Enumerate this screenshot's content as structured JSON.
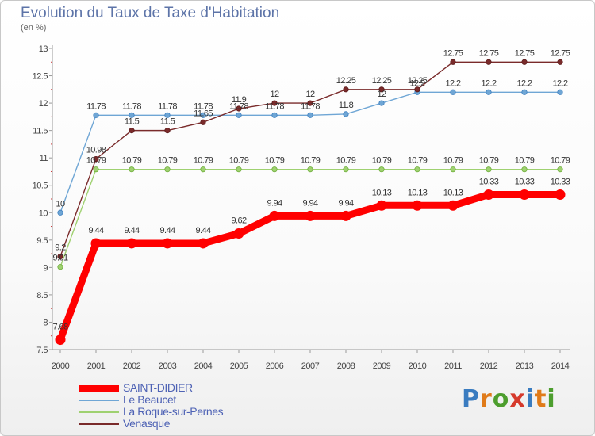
{
  "title": "Evolution du Taux de Taxe d'Habitation",
  "unit": "(en %)",
  "brand": {
    "text": "Proxiti",
    "colors": [
      "#3a7cc0",
      "#e07b1a",
      "#4d9e2e",
      "#d63a2c",
      "#3a7cc0",
      "#e07b1a",
      "#4d9e2e"
    ]
  },
  "chart_data": {
    "type": "line",
    "x": [
      "2000",
      "2001",
      "2002",
      "2003",
      "2004",
      "2005",
      "2006",
      "2007",
      "2008",
      "2009",
      "2010",
      "2011",
      "2012",
      "2013",
      "2014"
    ],
    "ylim": [
      7.5,
      13
    ],
    "yticks": [
      "7.5",
      "8",
      "8.5",
      "9",
      "9.5",
      "10",
      "10.5",
      "11",
      "11.5",
      "12",
      "12.5",
      "13"
    ],
    "ytick_values": [
      7.5,
      8,
      8.5,
      9,
      9.5,
      10,
      10.5,
      11,
      11.5,
      12,
      12.5,
      13
    ],
    "grid": false,
    "legend_position": "bottom-left",
    "series": [
      {
        "name": "SAINT-DIDIER",
        "color": "#ff0000",
        "thick": true,
        "values": [
          7.68,
          9.44,
          9.44,
          9.44,
          9.44,
          9.62,
          9.94,
          9.94,
          9.94,
          10.13,
          10.13,
          10.13,
          10.33,
          10.33,
          10.33
        ],
        "labels": [
          "7.68",
          "9.44",
          "9.44",
          "9.44",
          "9.44",
          "9.62",
          "9.94",
          "9.94",
          "9.94",
          "10.13",
          "10.13",
          "10.13",
          "10.33",
          "10.33",
          "10.33"
        ]
      },
      {
        "name": "Le Beaucet",
        "color": "#6fa6d5",
        "thick": false,
        "values": [
          10,
          11.78,
          11.78,
          11.78,
          11.78,
          11.78,
          11.78,
          11.78,
          11.8,
          12,
          12.2,
          12.2,
          12.2,
          12.2,
          12.2
        ],
        "labels": [
          "10",
          "11.78",
          "11.78",
          "11.78",
          "11.78",
          "11.78",
          "11.78",
          "11.78",
          "11.8",
          "12",
          "12.2",
          "12.2",
          "12.2",
          "12.2",
          "12.2"
        ]
      },
      {
        "name": "La Roque-sur-Pernes",
        "color": "#9fd170",
        "thick": false,
        "values": [
          9.01,
          10.79,
          10.79,
          10.79,
          10.79,
          10.79,
          10.79,
          10.79,
          10.79,
          10.79,
          10.79,
          10.79,
          10.79,
          10.79,
          10.79
        ],
        "labels": [
          "9.01",
          "10.79",
          "10.79",
          "10.79",
          "10.79",
          "10.79",
          "10.79",
          "10.79",
          "10.79",
          "10.79",
          "10.79",
          "10.79",
          "10.79",
          "10.79",
          "10.79"
        ]
      },
      {
        "name": "Venasque",
        "color": "#7a2b2b",
        "thick": false,
        "values": [
          9.2,
          10.98,
          11.5,
          11.5,
          11.65,
          11.9,
          12,
          12,
          12.25,
          12.25,
          12.25,
          12.75,
          12.75,
          12.75,
          12.75
        ],
        "labels": [
          "9.2",
          "10.98",
          "11.5",
          "11.5",
          "11.65",
          "11.9",
          "12",
          "12",
          "12.25",
          "12.25",
          "12.25",
          "12.75",
          "12.75",
          "12.75",
          "12.75"
        ]
      }
    ]
  }
}
